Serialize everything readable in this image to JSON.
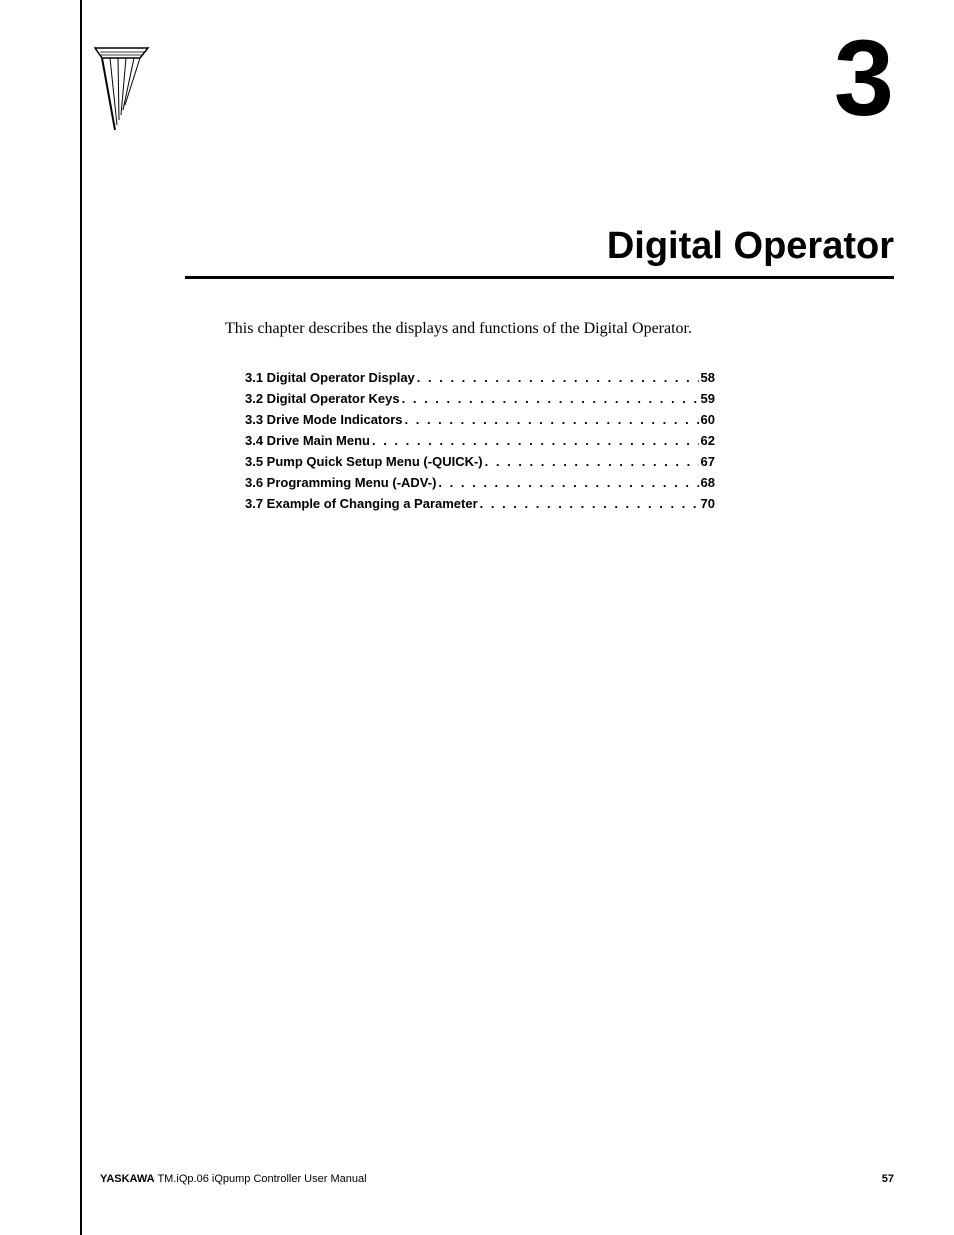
{
  "chapter": {
    "number": "3",
    "title": "Digital Operator",
    "intro": "This chapter describes the displays and functions of the Digital Operator."
  },
  "toc": [
    {
      "label": "3.1 Digital Operator Display",
      "page": "58"
    },
    {
      "label": "3.2 Digital Operator Keys",
      "page": "59"
    },
    {
      "label": "3.3 Drive Mode Indicators",
      "page": "60"
    },
    {
      "label": "3.4 Drive Main Menu",
      "page": "62"
    },
    {
      "label": "3.5 Pump Quick Setup Menu (-QUICK-)",
      "page": "67"
    },
    {
      "label": "3.6 Programming Menu (-ADV-)",
      "page": "68"
    },
    {
      "label": "3.7 Example of Changing a Parameter",
      "page": "70"
    }
  ],
  "footer": {
    "brand": "YASKAWA",
    "doc": " TM.iQp.06 iQpump Controller User Manual",
    "page": "57"
  },
  "style": {
    "chapter_number_fontsize": 108,
    "chapter_title_fontsize": 38,
    "intro_fontsize": 16,
    "toc_fontsize": 13,
    "footer_fontsize": 11,
    "text_color": "#000000",
    "background_color": "#ffffff",
    "rule_color": "#000000"
  }
}
